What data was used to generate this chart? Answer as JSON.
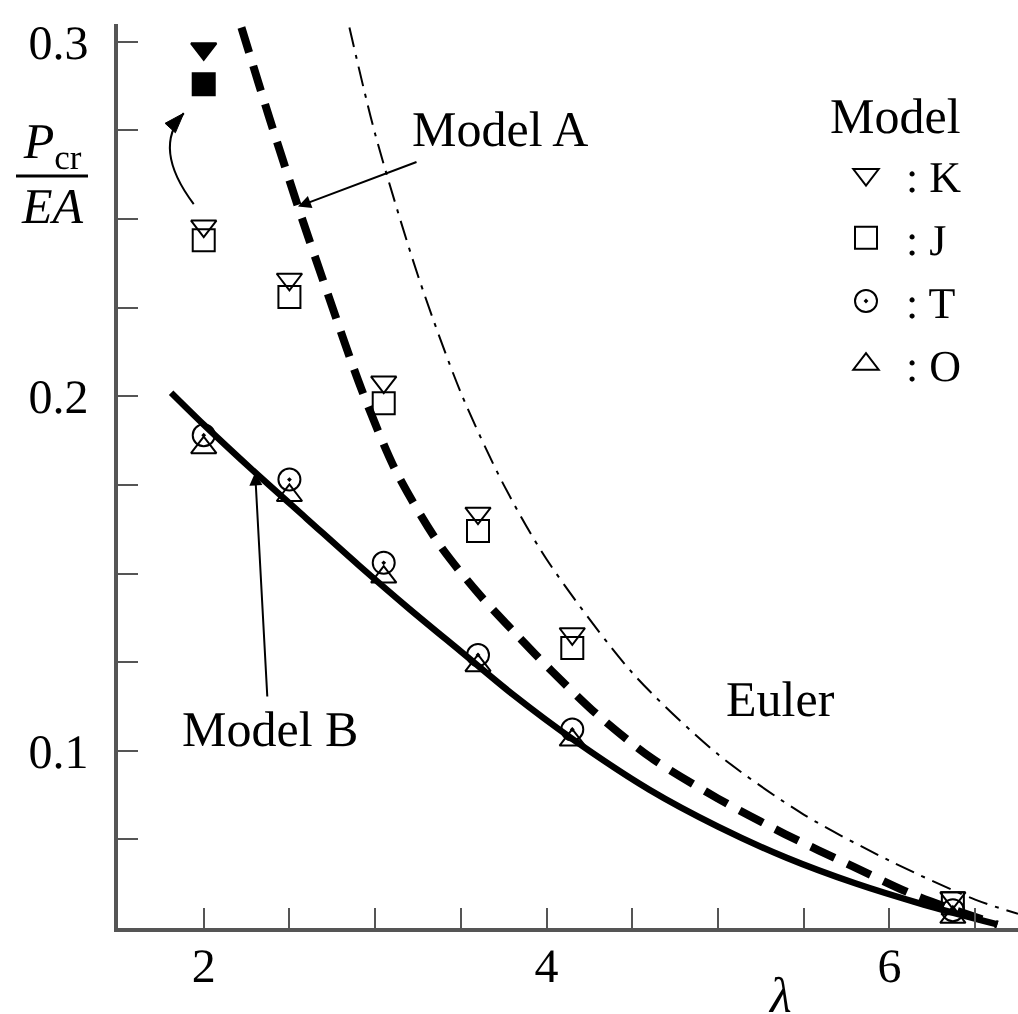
{
  "chart_data": {
    "type": "scatter",
    "xlabel": "λ",
    "ylabel": "P$_{cr}$ EA",
    "legend_title": "Model",
    "legend": "top right",
    "xlim": [
      1.5,
      6.75
    ],
    "ylim": [
      0.05,
      0.305
    ],
    "xticks": [
      2,
      {
        "value": 2.5,
        "label": null
      },
      {
        "value": 3,
        "label": null
      },
      {
        "value": 3.5,
        "label": null
      },
      4,
      {
        "value": 4.5,
        "label": null
      },
      {
        "value": 5,
        "label": null
      },
      {
        "value": 5.5,
        "label": null
      },
      6,
      {
        "value": 6.5,
        "label": null
      }
    ],
    "yticks": [
      {
        "value": 0.05,
        "label": null
      },
      {
        "value": 0.075,
        "label": null
      },
      0.1,
      {
        "value": 0.125,
        "label": null
      },
      {
        "value": 0.15,
        "label": null
      },
      {
        "value": 0.175,
        "label": null
      },
      0.2,
      {
        "value": 0.225,
        "label": null
      },
      {
        "value": 0.25,
        "label": null
      },
      {
        "value": 0.275,
        "label": null
      },
      0.3
    ],
    "annotations": [
      {
        "text": "Model A",
        "x": 2.55,
        "y": 0.2535
      },
      {
        "text": "Model B",
        "x": 2.3,
        "y": 0.1785
      },
      {
        "text": "Euler",
        "x": 5.0,
        "y": 0.099
      }
    ],
    "series": [
      {
        "type": "line",
        "color": "#000000",
        "line_style": "dashed",
        "x": [
          2.22,
          2.38,
          2.55,
          2.73,
          2.92,
          3.12,
          3.37,
          3.6,
          3.83,
          4.03,
          4.3,
          4.61,
          5.0,
          5.39,
          5.78,
          6.16,
          6.63
        ],
        "values": [
          0.304,
          0.279,
          0.2535,
          0.228,
          0.202,
          0.179,
          0.1585,
          0.1445,
          0.1325,
          0.1225,
          0.11,
          0.098,
          0.0865,
          0.0765,
          0.0675,
          0.059,
          0.051
        ]
      },
      {
        "type": "line",
        "color": "#000000",
        "line_style": "solid",
        "x": [
          1.81,
          2.0,
          2.3,
          2.6,
          2.9,
          3.2,
          3.5,
          3.8,
          4.16,
          4.6,
          5.0,
          5.4,
          5.8,
          6.2,
          6.63
        ],
        "values": [
          0.201,
          0.192,
          0.1785,
          0.1655,
          0.1525,
          0.14,
          0.128,
          0.116,
          0.103,
          0.089,
          0.0786,
          0.0698,
          0.0626,
          0.0566,
          0.051
        ]
      },
      {
        "type": "line",
        "color": "#000000",
        "line_style": "dashdot",
        "x": [
          2.85,
          3.0,
          3.25,
          3.5,
          3.75,
          4.0,
          4.5,
          5.0,
          5.5,
          6.0,
          6.5,
          6.75
        ],
        "values": [
          0.304,
          0.274,
          0.234,
          0.201,
          0.175,
          0.154,
          0.122,
          0.099,
          0.082,
          0.069,
          0.058,
          0.054
        ]
      },
      {
        "name": ": K",
        "color": "#000000",
        "marker": "triangle-down-open",
        "x": [
          2,
          2.5,
          3.05,
          3.6,
          4.15,
          6.37
        ],
        "values": [
          0.248,
          0.233,
          0.204,
          0.167,
          0.133,
          0.0585
        ]
      },
      {
        "name": ": J",
        "color": "#000000",
        "marker": "square-open",
        "x": [
          2,
          2.5,
          3.05,
          3.6,
          4.15,
          6.37
        ],
        "values": [
          0.244,
          0.228,
          0.198,
          0.162,
          0.129,
          0.057
        ]
      },
      {
        "name": ": T",
        "color": "#000000",
        "marker": "circle-open-dot",
        "x": [
          2,
          2.5,
          3.05,
          3.6,
          4.15,
          6.37
        ],
        "values": [
          0.189,
          0.1765,
          0.153,
          0.127,
          0.106,
          0.055
        ]
      },
      {
        "name": ": O",
        "color": "#000000",
        "marker": "triangle-open",
        "x": [
          2,
          2.5,
          3.05,
          3.6,
          4.15,
          6.37
        ],
        "values": [
          0.1855,
          0.172,
          0.149,
          0.124,
          0.103,
          0.053
        ]
      },
      {
        "color": "#000000",
        "marker": "triangle-down",
        "x": [
          2
        ],
        "values": [
          0.298
        ]
      },
      {
        "color": "#000000",
        "marker": "square",
        "x": [
          2
        ],
        "values": [
          0.288
        ]
      }
    ]
  }
}
